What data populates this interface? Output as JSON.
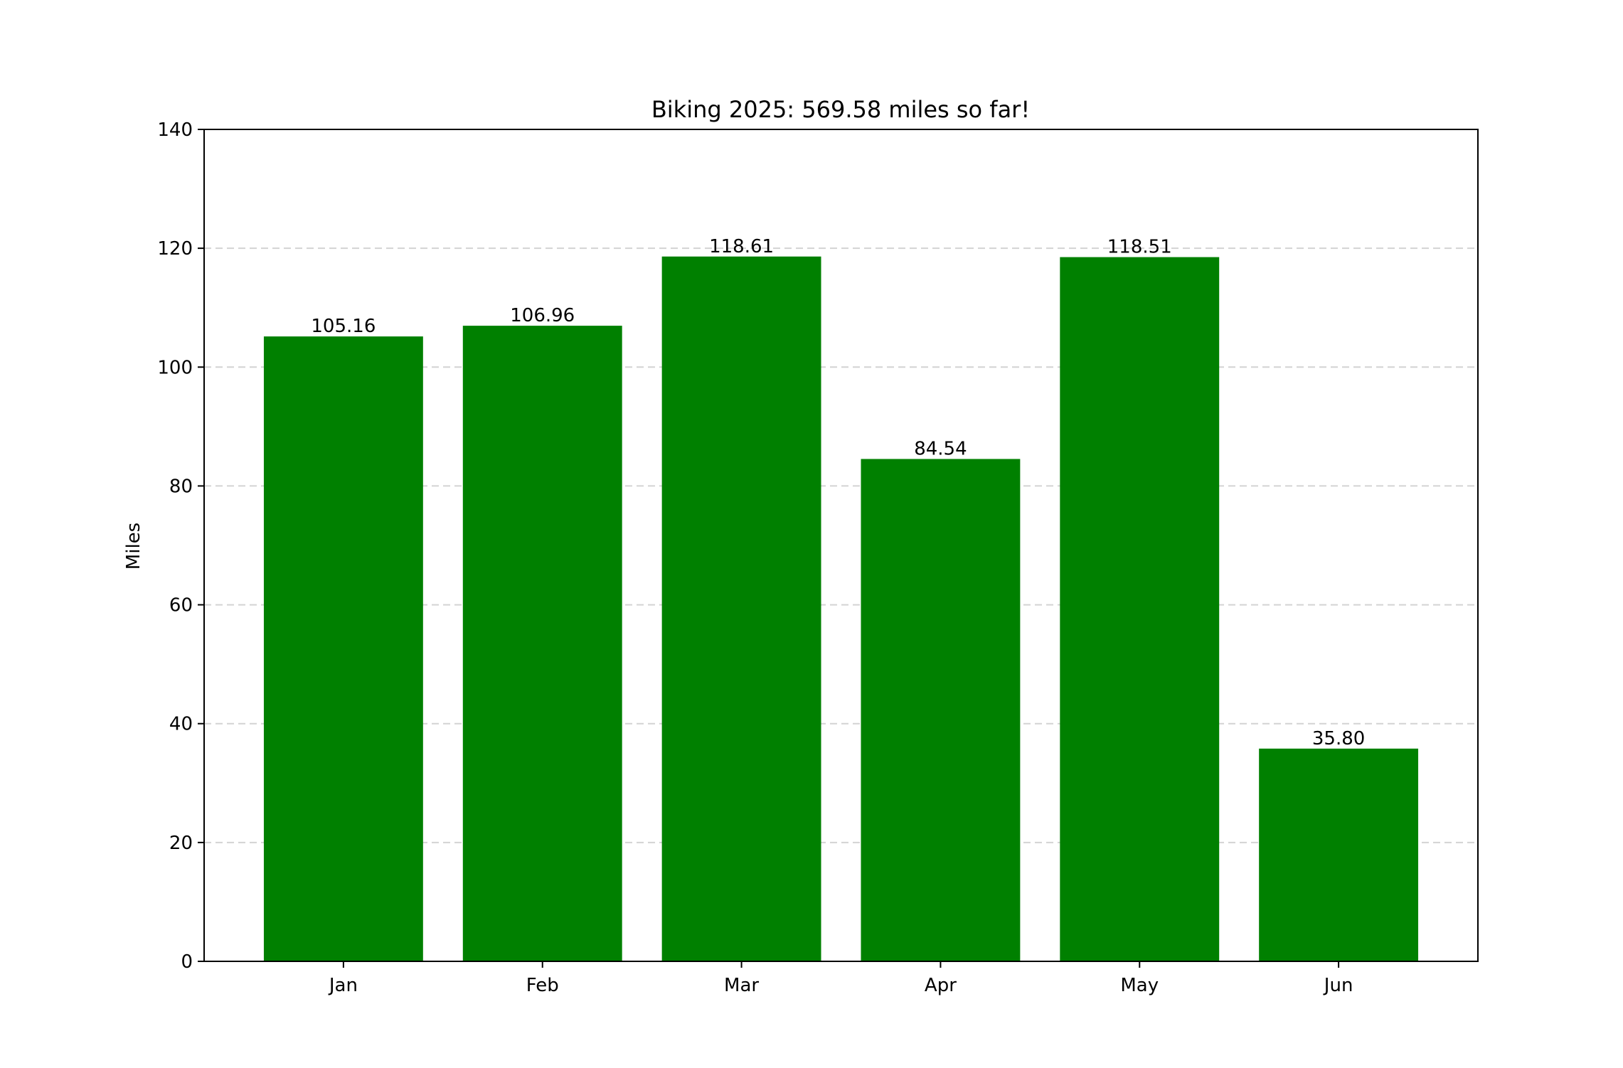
{
  "chart_data": {
    "type": "bar",
    "title": "Biking 2025: 569.58 miles so far!",
    "xlabel": "",
    "ylabel": "Miles",
    "categories": [
      "Jan",
      "Feb",
      "Mar",
      "Apr",
      "May",
      "Jun"
    ],
    "values": [
      105.16,
      106.96,
      118.61,
      84.54,
      118.51,
      35.8
    ],
    "value_labels": [
      "105.16",
      "106.96",
      "118.61",
      "84.54",
      "118.51",
      "35.80"
    ],
    "ylim": [
      0,
      140
    ],
    "yticks": [
      0,
      20,
      40,
      60,
      80,
      100,
      120,
      140
    ],
    "ytick_labels": [
      "0",
      "20",
      "40",
      "60",
      "80",
      "100",
      "120",
      "140"
    ],
    "grid": "y-dashed",
    "legend": "none",
    "bar_color": "#008000",
    "grid_color": "#d3d3d3"
  }
}
